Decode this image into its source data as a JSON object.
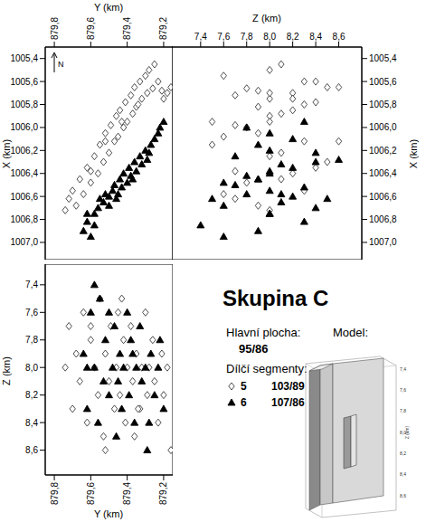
{
  "chart_data": {
    "type": "scatter",
    "title": "Skupina C",
    "north_label": "N",
    "grid": false,
    "annotations": {
      "main_label": "Hlavní plocha:",
      "main_value": "95/86",
      "segments_label": "Dílčí segmenty:",
      "model_label": "Model:"
    },
    "model": {
      "zlabel": "Z (km)",
      "zticks": [
        {
          "value": 7.4,
          "label": "7,4"
        },
        {
          "value": 7.6,
          "label": "7,6"
        },
        {
          "value": 7.8,
          "label": "7,8"
        },
        {
          "value": 8.0,
          "label": "8,0"
        },
        {
          "value": 8.2,
          "label": "8,2"
        },
        {
          "value": 8.4,
          "label": "8,4"
        },
        {
          "value": 8.6,
          "label": "8,6"
        }
      ]
    },
    "series": [
      {
        "name": "5",
        "label": "103/89",
        "marker": "open_diamond",
        "color": "#3a3a3a",
        "Y": [
          879.74,
          879.72,
          879.7,
          879.68,
          879.66,
          879.64,
          879.62,
          879.6,
          879.58,
          879.56,
          879.55,
          879.53,
          879.52,
          879.5,
          879.49,
          879.47,
          879.46,
          879.45,
          879.44,
          879.42,
          879.41,
          879.4,
          879.38,
          879.37,
          879.36,
          879.35,
          879.33,
          879.32,
          879.3,
          879.29,
          879.28,
          879.26,
          879.25,
          879.23,
          879.21,
          879.2,
          879.18,
          879.16,
          879.52,
          879.43,
          879.34,
          879.6
        ],
        "X": [
          1006.72,
          1006.62,
          1006.55,
          1006.68,
          1006.45,
          1006.58,
          1006.35,
          1006.48,
          1006.25,
          1006.4,
          1006.15,
          1006.3,
          1006.05,
          1006.22,
          1005.98,
          1006.12,
          1005.9,
          1006.08,
          1005.85,
          1006.0,
          1005.78,
          1005.95,
          1005.72,
          1005.88,
          1005.65,
          1005.82,
          1005.6,
          1005.75,
          1005.55,
          1005.7,
          1005.5,
          1005.66,
          1005.45,
          1005.6,
          1005.68,
          1005.75,
          1005.7,
          1005.65,
          1006.12,
          1005.95,
          1005.8,
          1006.38
        ],
        "Z": [
          8.0,
          7.7,
          8.3,
          7.9,
          8.1,
          7.6,
          8.4,
          7.8,
          8.0,
          8.2,
          7.5,
          8.5,
          7.9,
          8.1,
          7.7,
          8.3,
          8.0,
          7.6,
          8.2,
          7.8,
          8.4,
          8.0,
          7.7,
          8.1,
          8.5,
          7.9,
          8.3,
          8.0,
          7.6,
          8.2,
          8.0,
          7.8,
          8.1,
          8.4,
          7.9,
          8.2,
          8.0,
          8.6,
          8.6,
          7.5,
          8.3,
          7.7
        ]
      },
      {
        "name": "6",
        "label": "107/86",
        "marker": "triangle",
        "color": "#000000",
        "Y": [
          879.64,
          879.62,
          879.6,
          879.58,
          879.56,
          879.55,
          879.53,
          879.52,
          879.5,
          879.48,
          879.47,
          879.46,
          879.44,
          879.43,
          879.42,
          879.4,
          879.39,
          879.38,
          879.36,
          879.35,
          879.33,
          879.32,
          879.3,
          879.29,
          879.27,
          879.25,
          879.23,
          879.22,
          879.2,
          879.58,
          879.62,
          879.5,
          879.45,
          879.37,
          879.28
        ],
        "X": [
          1006.9,
          1006.82,
          1006.95,
          1006.75,
          1006.7,
          1006.62,
          1006.65,
          1006.58,
          1006.6,
          1006.55,
          1006.5,
          1006.62,
          1006.45,
          1006.52,
          1006.4,
          1006.48,
          1006.35,
          1006.42,
          1006.3,
          1006.38,
          1006.25,
          1006.32,
          1006.2,
          1006.28,
          1006.15,
          1006.1,
          1006.05,
          1006.0,
          1005.95,
          1006.85,
          1006.75,
          1006.68,
          1006.58,
          1006.45,
          1006.22
        ],
        "Z": [
          7.9,
          8.3,
          7.6,
          8.0,
          8.4,
          7.5,
          8.1,
          7.8,
          8.2,
          8.0,
          7.7,
          8.5,
          7.9,
          8.3,
          8.0,
          7.6,
          8.2,
          7.8,
          8.4,
          8.0,
          7.7,
          8.1,
          8.0,
          8.6,
          7.9,
          8.2,
          8.0,
          7.8,
          8.3,
          7.4,
          8.0,
          7.6,
          8.1,
          7.9,
          8.4
        ]
      }
    ],
    "panels": [
      {
        "x_field": "Y",
        "y_field": "X",
        "xlabel": "Y (km)",
        "ylabel": "X (km)",
        "xlim": [
          879.85,
          879.15
        ],
        "ylim": [
          1007.15,
          1005.3
        ],
        "xticks": [
          {
            "value": 879.8,
            "label": "879,8"
          },
          {
            "value": 879.6,
            "label": "879,6"
          },
          {
            "value": 879.4,
            "label": "879,4"
          },
          {
            "value": 879.2,
            "label": "879,2"
          }
        ],
        "yticks": [
          {
            "value": 1005.4,
            "label": "1005,4"
          },
          {
            "value": 1005.6,
            "label": "1005,6"
          },
          {
            "value": 1005.8,
            "label": "1005,8"
          },
          {
            "value": 1006.0,
            "label": "1006,0"
          },
          {
            "value": 1006.2,
            "label": "1006,2"
          },
          {
            "value": 1006.4,
            "label": "1006,4"
          },
          {
            "value": 1006.6,
            "label": "1006,6"
          },
          {
            "value": 1006.8,
            "label": "1006,8"
          },
          {
            "value": 1007.0,
            "label": "1007,0"
          }
        ]
      },
      {
        "x_field": "Z",
        "y_field": "X",
        "xlabel": "Z (km)",
        "ylabel": "X (km)",
        "xlim": [
          7.15,
          8.8
        ],
        "ylim": [
          1007.15,
          1005.3
        ],
        "xticks": [
          {
            "value": 7.4,
            "label": "7,4"
          },
          {
            "value": 7.6,
            "label": "7,6"
          },
          {
            "value": 7.8,
            "label": "7,8"
          },
          {
            "value": 8.0,
            "label": "8,0"
          },
          {
            "value": 8.2,
            "label": "8,2"
          },
          {
            "value": 8.4,
            "label": "8,4"
          },
          {
            "value": 8.6,
            "label": "8,6"
          }
        ],
        "yticks": [
          {
            "value": 1005.4,
            "label": "1005,4"
          },
          {
            "value": 1005.6,
            "label": "1005,6"
          },
          {
            "value": 1005.8,
            "label": "1005,8"
          },
          {
            "value": 1006.0,
            "label": "1006,0"
          },
          {
            "value": 1006.2,
            "label": "1006,2"
          },
          {
            "value": 1006.4,
            "label": "1006,4"
          },
          {
            "value": 1006.6,
            "label": "1006,6"
          },
          {
            "value": 1006.8,
            "label": "1006,8"
          },
          {
            "value": 1007.0,
            "label": "1007,0"
          }
        ]
      },
      {
        "x_field": "Y",
        "y_field": "Z",
        "xlabel": "Y (km)",
        "ylabel": "Z (km)",
        "xlim": [
          879.85,
          879.15
        ],
        "ylim": [
          8.78,
          7.25
        ],
        "xticks": [
          {
            "value": 879.8,
            "label": "879,8"
          },
          {
            "value": 879.6,
            "label": "879,6"
          },
          {
            "value": 879.4,
            "label": "879,4"
          },
          {
            "value": 879.2,
            "label": "879,2"
          }
        ],
        "yticks": [
          {
            "value": 7.4,
            "label": "7,4"
          },
          {
            "value": 7.6,
            "label": "7,6"
          },
          {
            "value": 7.8,
            "label": "7,8"
          },
          {
            "value": 8.0,
            "label": "8,0"
          },
          {
            "value": 8.2,
            "label": "8,2"
          },
          {
            "value": 8.4,
            "label": "8,4"
          },
          {
            "value": 8.6,
            "label": "8,6"
          }
        ]
      }
    ]
  }
}
